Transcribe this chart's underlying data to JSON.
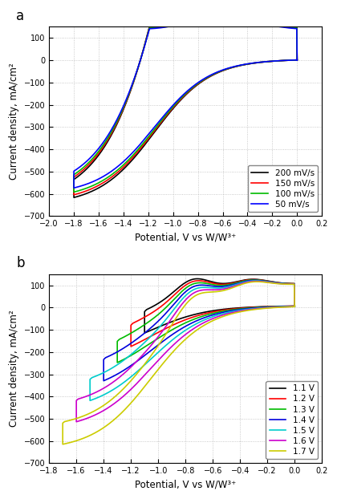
{
  "panel_a": {
    "title": "a",
    "xlabel": "Potential, V vs W/W³⁺",
    "ylabel": "Current density, mA/cm²",
    "xlim": [
      -2.0,
      0.2
    ],
    "ylim": [
      -700,
      150
    ],
    "xticks": [
      -2.0,
      -1.8,
      -1.6,
      -1.4,
      -1.2,
      -1.0,
      -0.8,
      -0.6,
      -0.4,
      -0.2,
      0.0,
      0.2
    ],
    "yticks": [
      -700,
      -600,
      -500,
      -400,
      -300,
      -200,
      -100,
      0,
      100
    ],
    "series": [
      {
        "label": "200 mV/s",
        "color": "#000000",
        "v_switch": -1.8,
        "lw": 1.2
      },
      {
        "label": "150 mV/s",
        "color": "#ff0000",
        "v_switch": -1.8,
        "lw": 1.2
      },
      {
        "label": "100 mV/s",
        "color": "#00bb00",
        "v_switch": -1.8,
        "lw": 1.2
      },
      {
        "label": "50 mV/s",
        "color": "#0000ff",
        "v_switch": -1.8,
        "lw": 1.2
      }
    ],
    "scan_rates_mv": [
      200,
      150,
      100,
      50
    ],
    "base_scale": 1.0
  },
  "panel_b": {
    "title": "b",
    "xlabel": "Potential, V vs W/W³⁺",
    "ylabel": "Current density, mA/cm²",
    "xlim": [
      -1.8,
      0.2
    ],
    "ylim": [
      -700,
      150
    ],
    "xticks": [
      -1.8,
      -1.6,
      -1.4,
      -1.2,
      -1.0,
      -0.8,
      -0.6,
      -0.4,
      -0.2,
      0.0,
      0.2
    ],
    "yticks": [
      -700,
      -600,
      -500,
      -400,
      -300,
      -200,
      -100,
      0,
      100
    ],
    "series": [
      {
        "label": "1.1 V",
        "color": "#000000",
        "v_switch": -1.1,
        "lw": 1.2
      },
      {
        "label": "1.2 V",
        "color": "#ff0000",
        "v_switch": -1.2,
        "lw": 1.2
      },
      {
        "label": "1.3 V",
        "color": "#00bb00",
        "v_switch": -1.3,
        "lw": 1.2
      },
      {
        "label": "1.4 V",
        "color": "#0000dd",
        "v_switch": -1.4,
        "lw": 1.2
      },
      {
        "label": "1.5 V",
        "color": "#00cccc",
        "v_switch": -1.5,
        "lw": 1.2
      },
      {
        "label": "1.6 V",
        "color": "#cc00cc",
        "v_switch": -1.6,
        "lw": 1.2
      },
      {
        "label": "1.7 V",
        "color": "#cccc00",
        "v_switch": -1.7,
        "lw": 1.2
      }
    ]
  },
  "background_color": "#ffffff",
  "grid_color": "#aaaaaa",
  "legend_fontsize": 7.5,
  "tick_fontsize": 7,
  "label_fontsize": 8.5
}
